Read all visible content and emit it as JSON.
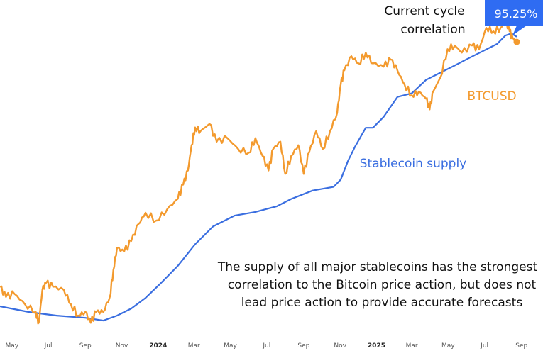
{
  "chart_data": {
    "type": "line",
    "title": "",
    "xlabel": "",
    "ylabel": "",
    "x_range": [
      "2023-04-11",
      "2025-10-07"
    ],
    "y_scale": "log",
    "grid": false,
    "legend": "none (inline labels)",
    "x_ticks": [
      {
        "date": "2023-05-01",
        "label": "May"
      },
      {
        "date": "2023-07-01",
        "label": "Jul"
      },
      {
        "date": "2023-09-01",
        "label": "Sep"
      },
      {
        "date": "2023-11-01",
        "label": "Nov"
      },
      {
        "date": "2024-01-01",
        "label": "2024",
        "year": true
      },
      {
        "date": "2024-03-01",
        "label": "Mar"
      },
      {
        "date": "2024-05-01",
        "label": "May"
      },
      {
        "date": "2024-07-01",
        "label": "Jul"
      },
      {
        "date": "2024-09-01",
        "label": "Sep"
      },
      {
        "date": "2024-11-01",
        "label": "Nov"
      },
      {
        "date": "2025-01-01",
        "label": "2025",
        "year": true
      },
      {
        "date": "2025-03-01",
        "label": "Mar"
      },
      {
        "date": "2025-05-01",
        "label": "May"
      },
      {
        "date": "2025-07-01",
        "label": "Jul"
      },
      {
        "date": "2025-09-01",
        "label": "Sep"
      }
    ],
    "series": [
      {
        "name": "BTCUSD",
        "color": "#f39a2e",
        "unit": "USD (thousands)",
        "ylim": [
          22.5,
          136.7
        ],
        "points": [
          [
            "2023-04-11",
            31.3
          ],
          [
            "2023-04-21",
            29.7
          ],
          [
            "2023-05-05",
            30.2
          ],
          [
            "2023-05-23",
            28.6
          ],
          [
            "2023-06-10",
            27.5
          ],
          [
            "2023-06-15",
            26.0
          ],
          [
            "2023-06-21",
            30.8
          ],
          [
            "2023-06-27",
            31.9
          ],
          [
            "2023-07-09",
            31.3
          ],
          [
            "2023-07-27",
            30.8
          ],
          [
            "2023-08-08",
            28.6
          ],
          [
            "2023-08-20",
            27.0
          ],
          [
            "2023-09-01",
            27.5
          ],
          [
            "2023-09-10",
            26.0
          ],
          [
            "2023-09-19",
            27.5
          ],
          [
            "2023-10-01",
            27.5
          ],
          [
            "2023-10-12",
            29.7
          ],
          [
            "2023-10-18",
            34.1
          ],
          [
            "2023-10-24",
            38.2
          ],
          [
            "2023-11-05",
            37.5
          ],
          [
            "2023-11-17",
            39.6
          ],
          [
            "2023-11-29",
            43.2
          ],
          [
            "2023-12-11",
            45.8
          ],
          [
            "2023-12-29",
            44.0
          ],
          [
            "2024-01-16",
            46.6
          ],
          [
            "2024-02-03",
            49.2
          ],
          [
            "2024-02-12",
            52.9
          ],
          [
            "2024-02-20",
            56.9
          ],
          [
            "2024-02-26",
            64.8
          ],
          [
            "2024-03-03",
            71.0
          ],
          [
            "2024-03-12",
            69.7
          ],
          [
            "2024-03-27",
            72.3
          ],
          [
            "2024-04-08",
            66.0
          ],
          [
            "2024-04-26",
            67.2
          ],
          [
            "2024-05-14",
            63.6
          ],
          [
            "2024-06-01",
            62.4
          ],
          [
            "2024-06-12",
            67.2
          ],
          [
            "2024-06-24",
            61.3
          ],
          [
            "2024-07-04",
            56.9
          ],
          [
            "2024-07-12",
            63.6
          ],
          [
            "2024-07-24",
            66.0
          ],
          [
            "2024-08-01",
            55.9
          ],
          [
            "2024-08-11",
            61.3
          ],
          [
            "2024-08-23",
            64.8
          ],
          [
            "2024-09-01",
            55.9
          ],
          [
            "2024-09-10",
            62.4
          ],
          [
            "2024-09-22",
            69.7
          ],
          [
            "2024-10-03",
            63.6
          ],
          [
            "2024-10-15",
            69.7
          ],
          [
            "2024-10-27",
            76.5
          ],
          [
            "2024-11-02",
            88.5
          ],
          [
            "2024-11-08",
            95.2
          ],
          [
            "2024-11-20",
            102.4
          ],
          [
            "2024-12-02",
            98.7
          ],
          [
            "2024-12-14",
            104.3
          ],
          [
            "2024-12-26",
            98.7
          ],
          [
            "2025-01-13",
            97.0
          ],
          [
            "2025-01-25",
            100.6
          ],
          [
            "2025-02-05",
            95.2
          ],
          [
            "2025-02-17",
            88.5
          ],
          [
            "2025-03-01",
            83.8
          ],
          [
            "2025-03-13",
            85.4
          ],
          [
            "2025-03-25",
            82.3
          ],
          [
            "2025-03-31",
            77.9
          ],
          [
            "2025-04-06",
            85.4
          ],
          [
            "2025-04-18",
            91.8
          ],
          [
            "2025-04-30",
            106.2
          ],
          [
            "2025-05-12",
            108.2
          ],
          [
            "2025-05-24",
            104.3
          ],
          [
            "2025-06-10",
            108.2
          ],
          [
            "2025-06-22",
            106.2
          ],
          [
            "2025-07-04",
            118.5
          ],
          [
            "2025-07-16",
            116.4
          ],
          [
            "2025-07-28",
            118.5
          ],
          [
            "2025-08-05",
            122.9
          ],
          [
            "2025-08-12",
            116.4
          ],
          [
            "2025-08-17",
            112.2
          ],
          [
            "2025-08-24",
            110.2
          ]
        ]
      },
      {
        "name": "Stablecoin supply",
        "color": "#3a6ee0",
        "unit": "USD (billions)",
        "ylim": [
          110.6,
          312.0
        ],
        "points": [
          [
            "2023-04-11",
            126.2
          ],
          [
            "2023-05-29",
            124.1
          ],
          [
            "2023-07-15",
            122.8
          ],
          [
            "2023-09-01",
            122.0
          ],
          [
            "2023-10-01",
            121.0
          ],
          [
            "2023-10-24",
            122.8
          ],
          [
            "2023-11-17",
            125.4
          ],
          [
            "2023-12-11",
            129.4
          ],
          [
            "2024-01-04",
            134.8
          ],
          [
            "2024-02-03",
            142.2
          ],
          [
            "2024-03-03",
            151.6
          ],
          [
            "2024-04-02",
            159.8
          ],
          [
            "2024-05-08",
            165.0
          ],
          [
            "2024-06-12",
            166.8
          ],
          [
            "2024-07-18",
            169.6
          ],
          [
            "2024-08-11",
            173.3
          ],
          [
            "2024-09-16",
            177.7
          ],
          [
            "2024-10-21",
            179.6
          ],
          [
            "2024-11-02",
            183.5
          ],
          [
            "2024-11-14",
            193.8
          ],
          [
            "2024-11-26",
            202.3
          ],
          [
            "2024-12-14",
            213.9
          ],
          [
            "2024-12-26",
            213.9
          ],
          [
            "2025-01-13",
            220.9
          ],
          [
            "2025-02-05",
            234.3
          ],
          [
            "2025-03-01",
            236.8
          ],
          [
            "2025-03-25",
            246.4
          ],
          [
            "2025-04-18",
            251.7
          ],
          [
            "2025-05-12",
            257.1
          ],
          [
            "2025-06-04",
            262.6
          ],
          [
            "2025-06-28",
            268.2
          ],
          [
            "2025-07-22",
            274.0
          ],
          [
            "2025-08-05",
            280.9
          ],
          [
            "2025-08-15",
            282.7
          ],
          [
            "2025-08-24",
            279.9
          ]
        ]
      }
    ],
    "annotations": {
      "btc_label": "BTCUSD",
      "stablecoin_label": "Stablecoin supply",
      "cycle_label_line1": "Current cycle",
      "cycle_label_line2": "correlation",
      "correlation_value": "95.25%",
      "correlation_color": "#2f6cf2",
      "note_line1": "The supply of all major stablecoins has the strongest",
      "note_line2": "correlation to the Bitcoin price action, but does not",
      "note_line3": "lead price action to provide accurate forecasts"
    }
  }
}
